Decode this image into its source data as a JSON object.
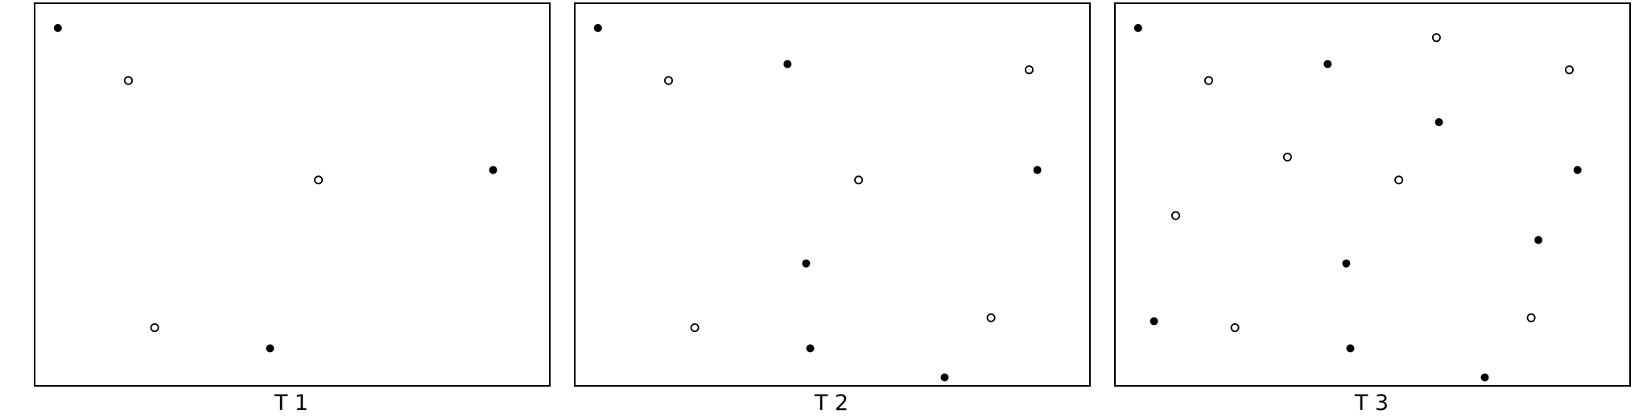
{
  "colors": {
    "ink": "#000000",
    "background": "#ffffff"
  },
  "panels": [
    {
      "label": "T 1",
      "points": [
        {
          "x": 0.045,
          "y": 0.935,
          "filled": true
        },
        {
          "x": 0.182,
          "y": 0.798,
          "filled": false
        },
        {
          "x": 0.551,
          "y": 0.538,
          "filled": false
        },
        {
          "x": 0.89,
          "y": 0.564,
          "filled": true
        },
        {
          "x": 0.233,
          "y": 0.152,
          "filled": false
        },
        {
          "x": 0.457,
          "y": 0.098,
          "filled": true
        }
      ]
    },
    {
      "label": "T 2",
      "points": [
        {
          "x": 0.045,
          "y": 0.935,
          "filled": true
        },
        {
          "x": 0.182,
          "y": 0.798,
          "filled": false
        },
        {
          "x": 0.413,
          "y": 0.841,
          "filled": true
        },
        {
          "x": 0.882,
          "y": 0.826,
          "filled": false
        },
        {
          "x": 0.551,
          "y": 0.538,
          "filled": false
        },
        {
          "x": 0.898,
          "y": 0.564,
          "filled": true
        },
        {
          "x": 0.449,
          "y": 0.32,
          "filled": true
        },
        {
          "x": 0.233,
          "y": 0.152,
          "filled": false
        },
        {
          "x": 0.808,
          "y": 0.178,
          "filled": false
        },
        {
          "x": 0.457,
          "y": 0.098,
          "filled": true
        },
        {
          "x": 0.718,
          "y": 0.022,
          "filled": true
        }
      ]
    },
    {
      "label": "T 3",
      "points": [
        {
          "x": 0.045,
          "y": 0.935,
          "filled": true
        },
        {
          "x": 0.624,
          "y": 0.91,
          "filled": false
        },
        {
          "x": 0.182,
          "y": 0.798,
          "filled": false
        },
        {
          "x": 0.413,
          "y": 0.841,
          "filled": true
        },
        {
          "x": 0.882,
          "y": 0.826,
          "filled": false
        },
        {
          "x": 0.629,
          "y": 0.689,
          "filled": true
        },
        {
          "x": 0.335,
          "y": 0.598,
          "filled": false
        },
        {
          "x": 0.551,
          "y": 0.538,
          "filled": false
        },
        {
          "x": 0.898,
          "y": 0.564,
          "filled": true
        },
        {
          "x": 0.118,
          "y": 0.445,
          "filled": false
        },
        {
          "x": 0.822,
          "y": 0.381,
          "filled": true
        },
        {
          "x": 0.449,
          "y": 0.32,
          "filled": true
        },
        {
          "x": 0.076,
          "y": 0.169,
          "filled": true
        },
        {
          "x": 0.233,
          "y": 0.152,
          "filled": false
        },
        {
          "x": 0.808,
          "y": 0.178,
          "filled": false
        },
        {
          "x": 0.457,
          "y": 0.098,
          "filled": true
        },
        {
          "x": 0.718,
          "y": 0.022,
          "filled": true
        }
      ]
    }
  ]
}
